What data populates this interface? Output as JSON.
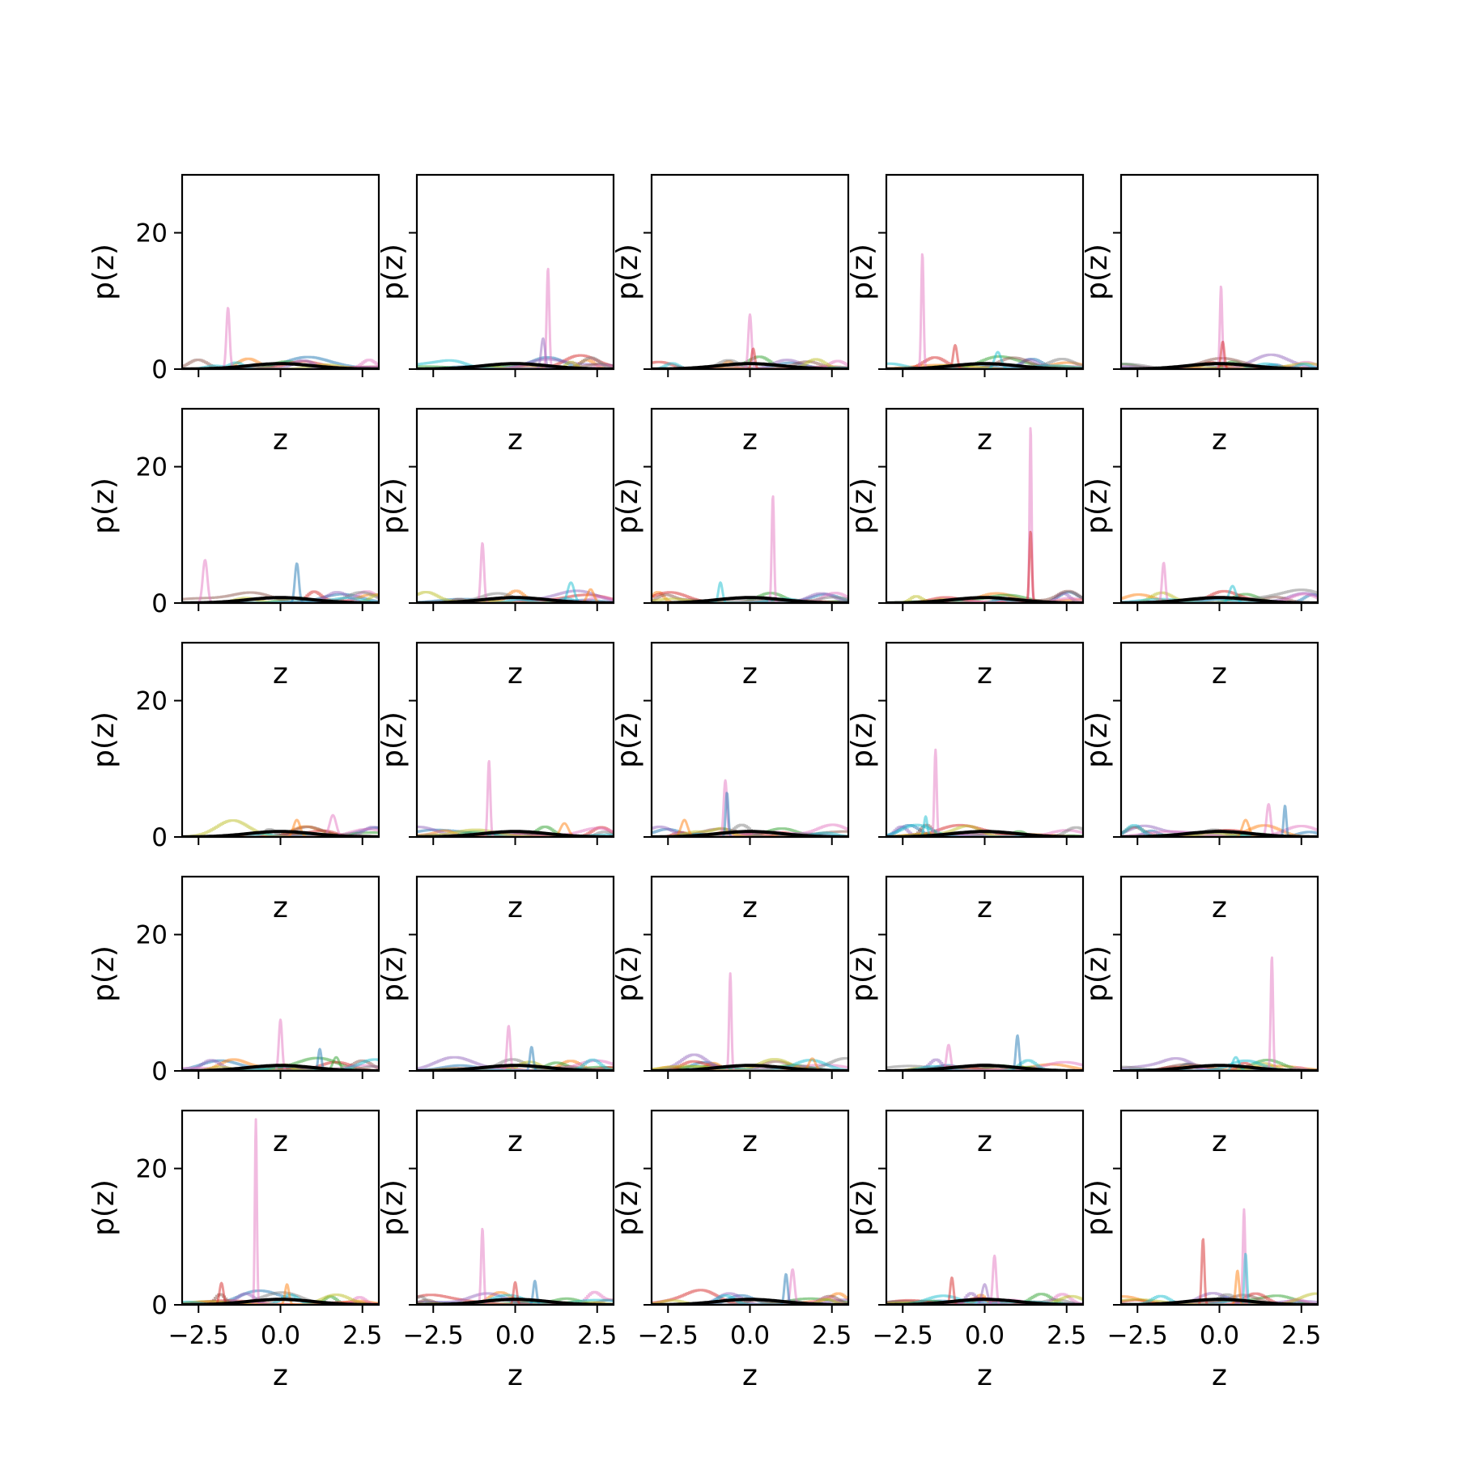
{
  "chart_data": {
    "type": "line",
    "layout": "5x5 grid of subplots, shared x and y axes",
    "xlabel": "z",
    "ylabel": "p(z)",
    "xlim": [
      -3,
      3
    ],
    "ylim": [
      0,
      28.5
    ],
    "xticks": [
      -2.5,
      0.0,
      2.5
    ],
    "xtick_labels": [
      "−2.5",
      "0.0",
      "2.5"
    ],
    "yticks": [
      0,
      20
    ],
    "ytick_labels": [
      "0",
      "20"
    ],
    "grid": false,
    "legend": "none",
    "line_alpha": 0.5,
    "palette": [
      "#1f77b4",
      "#ff7f0e",
      "#2ca02c",
      "#d62728",
      "#9467bd",
      "#8c564b",
      "#e377c2",
      "#7f7f7f",
      "#bcbd22",
      "#17becf"
    ],
    "base_color": "#000000",
    "panels": [
      {
        "row": 0,
        "col": 0,
        "curves": [
          {
            "color": "#e377c2",
            "center": -1.6,
            "height": 9.0,
            "width": 0.05
          }
        ]
      },
      {
        "row": 0,
        "col": 1,
        "curves": [
          {
            "color": "#e377c2",
            "center": 1.0,
            "height": 14.8,
            "width": 0.04
          },
          {
            "color": "#9467bd",
            "center": 0.85,
            "height": 4.5,
            "width": 0.06
          }
        ]
      },
      {
        "row": 0,
        "col": 2,
        "curves": [
          {
            "color": "#e377c2",
            "center": 0.0,
            "height": 8.0,
            "width": 0.05
          },
          {
            "color": "#d62728",
            "center": 0.1,
            "height": 3.0,
            "width": 0.05
          }
        ]
      },
      {
        "row": 0,
        "col": 3,
        "curves": [
          {
            "color": "#e377c2",
            "center": -1.9,
            "height": 17.0,
            "width": 0.035
          },
          {
            "color": "#d62728",
            "center": -0.9,
            "height": 3.5,
            "width": 0.06
          },
          {
            "color": "#17becf",
            "center": 0.4,
            "height": 2.5,
            "width": 0.1
          }
        ]
      },
      {
        "row": 0,
        "col": 4,
        "curves": [
          {
            "color": "#e377c2",
            "center": 0.05,
            "height": 12.2,
            "width": 0.035
          },
          {
            "color": "#d62728",
            "center": 0.1,
            "height": 4.0,
            "width": 0.05
          }
        ]
      },
      {
        "row": 1,
        "col": 0,
        "curves": [
          {
            "color": "#e377c2",
            "center": -2.3,
            "height": 6.3,
            "width": 0.07
          },
          {
            "color": "#1f77b4",
            "center": 0.5,
            "height": 5.8,
            "width": 0.06
          }
        ]
      },
      {
        "row": 1,
        "col": 1,
        "curves": [
          {
            "color": "#e377c2",
            "center": -1.0,
            "height": 8.8,
            "width": 0.05
          },
          {
            "color": "#17becf",
            "center": 1.7,
            "height": 3.0,
            "width": 0.1
          },
          {
            "color": "#ff7f0e",
            "center": 2.3,
            "height": 2.0,
            "width": 0.1
          }
        ]
      },
      {
        "row": 1,
        "col": 2,
        "curves": [
          {
            "color": "#e377c2",
            "center": 0.7,
            "height": 15.8,
            "width": 0.035
          },
          {
            "color": "#17becf",
            "center": -0.9,
            "height": 3.0,
            "width": 0.06
          }
        ]
      },
      {
        "row": 1,
        "col": 3,
        "curves": [
          {
            "color": "#e377c2",
            "center": 1.4,
            "height": 26.0,
            "width": 0.03
          },
          {
            "color": "#d62728",
            "center": 1.4,
            "height": 10.5,
            "width": 0.04
          }
        ]
      },
      {
        "row": 1,
        "col": 4,
        "curves": [
          {
            "color": "#e377c2",
            "center": -1.7,
            "height": 5.9,
            "width": 0.05
          },
          {
            "color": "#17becf",
            "center": 0.4,
            "height": 2.5,
            "width": 0.1
          }
        ]
      },
      {
        "row": 2,
        "col": 0,
        "curves": [
          {
            "color": "#e377c2",
            "center": 1.6,
            "height": 3.2,
            "width": 0.1
          },
          {
            "color": "#ff7f0e",
            "center": 0.5,
            "height": 2.5,
            "width": 0.1
          }
        ]
      },
      {
        "row": 2,
        "col": 1,
        "curves": [
          {
            "color": "#e377c2",
            "center": -0.8,
            "height": 11.2,
            "width": 0.04
          },
          {
            "color": "#ff7f0e",
            "center": 1.5,
            "height": 2.0,
            "width": 0.12
          }
        ]
      },
      {
        "row": 2,
        "col": 2,
        "curves": [
          {
            "color": "#e377c2",
            "center": -0.75,
            "height": 8.3,
            "width": 0.05
          },
          {
            "color": "#1f77b4",
            "center": -0.7,
            "height": 6.5,
            "width": 0.04
          },
          {
            "color": "#ff7f0e",
            "center": -2.0,
            "height": 2.5,
            "width": 0.1
          }
        ]
      },
      {
        "row": 2,
        "col": 3,
        "curves": [
          {
            "color": "#e377c2",
            "center": -1.5,
            "height": 12.8,
            "width": 0.035
          },
          {
            "color": "#17becf",
            "center": -1.8,
            "height": 3.0,
            "width": 0.05
          }
        ]
      },
      {
        "row": 2,
        "col": 4,
        "curves": [
          {
            "color": "#e377c2",
            "center": 1.5,
            "height": 4.8,
            "width": 0.06
          },
          {
            "color": "#1f77b4",
            "center": 2.0,
            "height": 4.6,
            "width": 0.04
          },
          {
            "color": "#ff7f0e",
            "center": 0.8,
            "height": 2.5,
            "width": 0.1
          }
        ]
      },
      {
        "row": 3,
        "col": 0,
        "curves": [
          {
            "color": "#e377c2",
            "center": 0.0,
            "height": 7.5,
            "width": 0.05
          },
          {
            "color": "#1f77b4",
            "center": 1.2,
            "height": 3.2,
            "width": 0.05
          },
          {
            "color": "#2ca02c",
            "center": 1.7,
            "height": 2.0,
            "width": 0.1
          }
        ]
      },
      {
        "row": 3,
        "col": 1,
        "curves": [
          {
            "color": "#e377c2",
            "center": -0.2,
            "height": 6.6,
            "width": 0.05
          },
          {
            "color": "#1f77b4",
            "center": 0.5,
            "height": 3.5,
            "width": 0.05
          }
        ]
      },
      {
        "row": 3,
        "col": 2,
        "curves": [
          {
            "color": "#e377c2",
            "center": -0.6,
            "height": 14.3,
            "width": 0.035
          },
          {
            "color": "#ff7f0e",
            "center": 1.9,
            "height": 1.8,
            "width": 0.1
          }
        ]
      },
      {
        "row": 3,
        "col": 3,
        "curves": [
          {
            "color": "#1f77b4",
            "center": 1.0,
            "height": 5.2,
            "width": 0.05
          },
          {
            "color": "#e377c2",
            "center": -1.1,
            "height": 3.8,
            "width": 0.06
          }
        ]
      },
      {
        "row": 3,
        "col": 4,
        "curves": [
          {
            "color": "#e377c2",
            "center": 1.6,
            "height": 16.8,
            "width": 0.035
          },
          {
            "color": "#17becf",
            "center": 0.5,
            "height": 2.0,
            "width": 0.1
          }
        ]
      },
      {
        "row": 4,
        "col": 0,
        "curves": [
          {
            "color": "#e377c2",
            "center": -0.75,
            "height": 27.2,
            "width": 0.03
          },
          {
            "color": "#d62728",
            "center": -1.8,
            "height": 3.2,
            "width": 0.06
          },
          {
            "color": "#ff7f0e",
            "center": 0.2,
            "height": 3.0,
            "width": 0.06
          }
        ]
      },
      {
        "row": 4,
        "col": 1,
        "curves": [
          {
            "color": "#e377c2",
            "center": -1.0,
            "height": 11.2,
            "width": 0.04
          },
          {
            "color": "#1f77b4",
            "center": 0.6,
            "height": 3.5,
            "width": 0.05
          },
          {
            "color": "#d62728",
            "center": 0.0,
            "height": 3.3,
            "width": 0.05
          }
        ]
      },
      {
        "row": 4,
        "col": 2,
        "curves": [
          {
            "color": "#e377c2",
            "center": 1.3,
            "height": 5.2,
            "width": 0.06
          },
          {
            "color": "#1f77b4",
            "center": 1.1,
            "height": 4.5,
            "width": 0.05
          }
        ]
      },
      {
        "row": 4,
        "col": 3,
        "curves": [
          {
            "color": "#e377c2",
            "center": 0.3,
            "height": 7.2,
            "width": 0.05
          },
          {
            "color": "#d62728",
            "center": -1.0,
            "height": 4.0,
            "width": 0.05
          },
          {
            "color": "#9467bd",
            "center": 0.0,
            "height": 3.0,
            "width": 0.08
          }
        ]
      },
      {
        "row": 4,
        "col": 4,
        "curves": [
          {
            "color": "#e377c2",
            "center": 0.75,
            "height": 14.0,
            "width": 0.035
          },
          {
            "color": "#d62728",
            "center": -0.5,
            "height": 9.7,
            "width": 0.04
          },
          {
            "color": "#17becf",
            "center": 0.8,
            "height": 7.5,
            "width": 0.04
          },
          {
            "color": "#ff7f0e",
            "center": 0.55,
            "height": 5.0,
            "width": 0.05
          }
        ]
      }
    ]
  }
}
